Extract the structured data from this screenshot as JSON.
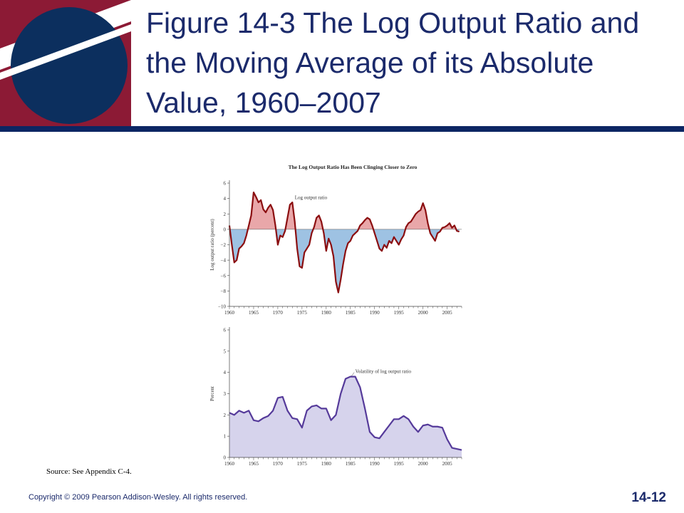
{
  "slide": {
    "title": "Figure 14-3 The Log Output Ratio and the Moving Average of its Absolute Value, 1960–2007",
    "source": "Source: See Appendix C-4.",
    "copyright": "Copyright © 2009 Pearson Addison-Wesley. All rights reserved.",
    "slide_number": "14-12",
    "colors": {
      "title": "#1b2a6b",
      "rule": "#0c2663",
      "logo_red": "#8c1a35",
      "logo_blue": "#0c2f5e",
      "top_line": "#8b0e10",
      "pos_fill": "#e9a7a9",
      "neg_fill": "#9ec2e3",
      "bottom_line": "#553a9a",
      "bottom_fill": "#d6d3ec"
    }
  },
  "chart_data": [
    {
      "type": "area",
      "title": "The Log Output Ratio Has Been Clinging Closer to Zero",
      "ylabel": "Log output ratio (percent)",
      "xlabel": "",
      "xlim": [
        1960,
        2008
      ],
      "ylim": [
        -10,
        6
      ],
      "yticks": [
        -10,
        -8,
        -6,
        -4,
        -2,
        0,
        2,
        4,
        6
      ],
      "ytick_labels": [
        "−10",
        "−8",
        "−6",
        "−4",
        "−2",
        "0",
        "2",
        "4",
        "6"
      ],
      "xticks": [
        1960,
        1965,
        1970,
        1975,
        1980,
        1985,
        1990,
        1995,
        2000,
        2005
      ],
      "annotation": "Log output ratio",
      "series": [
        {
          "name": "Log output ratio",
          "x": [
            1960,
            1960.5,
            1961,
            1961.5,
            1962,
            1962.5,
            1963,
            1963.5,
            1964,
            1964.5,
            1965,
            1965.5,
            1966,
            1966.5,
            1967,
            1967.5,
            1968,
            1968.5,
            1969,
            1969.5,
            1970,
            1970.5,
            1971,
            1971.5,
            1972,
            1972.5,
            1973,
            1973.5,
            1974,
            1974.5,
            1975,
            1975.5,
            1976,
            1976.5,
            1977,
            1977.5,
            1978,
            1978.5,
            1979,
            1979.5,
            1980,
            1980.5,
            1981,
            1981.5,
            1982,
            1982.5,
            1983,
            1983.5,
            1984,
            1984.5,
            1985,
            1985.5,
            1986,
            1986.5,
            1987,
            1987.5,
            1988,
            1988.5,
            1989,
            1989.5,
            1990,
            1990.5,
            1991,
            1991.5,
            1992,
            1992.5,
            1993,
            1993.5,
            1994,
            1994.5,
            1995,
            1995.5,
            1996,
            1996.5,
            1997,
            1997.5,
            1998,
            1998.5,
            1999,
            1999.5,
            2000,
            2000.5,
            2001,
            2001.5,
            2002,
            2002.5,
            2003,
            2003.5,
            2004,
            2004.5,
            2005,
            2005.5,
            2006,
            2006.5,
            2007,
            2007.5
          ],
          "y": [
            0.5,
            -2.0,
            -4.3,
            -4.0,
            -2.5,
            -2.2,
            -1.8,
            -0.8,
            0.5,
            1.8,
            4.8,
            4.2,
            3.5,
            3.8,
            2.6,
            2.2,
            2.8,
            3.2,
            2.5,
            0.5,
            -2.0,
            -0.8,
            -1.0,
            -0.2,
            1.5,
            3.2,
            3.5,
            1.0,
            -2.5,
            -4.8,
            -5.0,
            -3.0,
            -2.5,
            -2.0,
            -0.5,
            0.3,
            1.5,
            1.8,
            1.0,
            -0.5,
            -2.8,
            -1.2,
            -2.0,
            -3.5,
            -6.8,
            -8.2,
            -6.5,
            -4.5,
            -2.8,
            -1.8,
            -1.5,
            -0.8,
            -0.5,
            -0.2,
            0.5,
            0.8,
            1.2,
            1.5,
            1.3,
            0.5,
            -0.5,
            -1.5,
            -2.5,
            -2.8,
            -2.0,
            -2.4,
            -1.5,
            -1.8,
            -1.0,
            -1.5,
            -2.0,
            -1.3,
            -0.8,
            0.3,
            0.8,
            1.0,
            1.5,
            2.0,
            2.3,
            2.5,
            3.4,
            2.5,
            0.8,
            -0.5,
            -1.0,
            -1.5,
            -0.5,
            -0.3,
            0.2,
            0.3,
            0.5,
            0.8,
            0.2,
            0.5,
            -0.2,
            -0.3
          ]
        }
      ]
    },
    {
      "type": "area",
      "title": "",
      "ylabel": "Percent",
      "xlabel": "",
      "xlim": [
        1960,
        2008
      ],
      "ylim": [
        0,
        6
      ],
      "yticks": [
        0,
        1,
        2,
        3,
        4,
        5,
        6
      ],
      "ytick_labels": [
        "0",
        "1",
        "2",
        "3",
        "4",
        "5",
        "6"
      ],
      "xticks": [
        1960,
        1965,
        1970,
        1975,
        1980,
        1985,
        1990,
        1995,
        2000,
        2005
      ],
      "annotation": "Volatility of log output ratio",
      "series": [
        {
          "name": "Volatility of log output ratio",
          "x": [
            1960,
            1961,
            1962,
            1963,
            1964,
            1965,
            1966,
            1967,
            1968,
            1969,
            1970,
            1971,
            1972,
            1973,
            1974,
            1975,
            1976,
            1977,
            1978,
            1979,
            1980,
            1981,
            1982,
            1983,
            1984,
            1985,
            1986,
            1987,
            1988,
            1989,
            1990,
            1991,
            1992,
            1993,
            1994,
            1995,
            1996,
            1997,
            1998,
            1999,
            2000,
            2001,
            2002,
            2003,
            2004,
            2005,
            2006,
            2007,
            2008
          ],
          "y": [
            2.1,
            2.0,
            2.2,
            2.1,
            2.2,
            1.75,
            1.7,
            1.85,
            1.95,
            2.2,
            2.8,
            2.85,
            2.2,
            1.85,
            1.8,
            1.4,
            2.2,
            2.4,
            2.45,
            2.3,
            2.3,
            1.75,
            2.0,
            3.0,
            3.7,
            3.8,
            3.8,
            3.3,
            2.3,
            1.2,
            0.95,
            0.9,
            1.2,
            1.5,
            1.8,
            1.8,
            1.95,
            1.8,
            1.45,
            1.2,
            1.5,
            1.55,
            1.45,
            1.45,
            1.4,
            0.85,
            0.45,
            0.4,
            0.35
          ]
        }
      ]
    }
  ]
}
